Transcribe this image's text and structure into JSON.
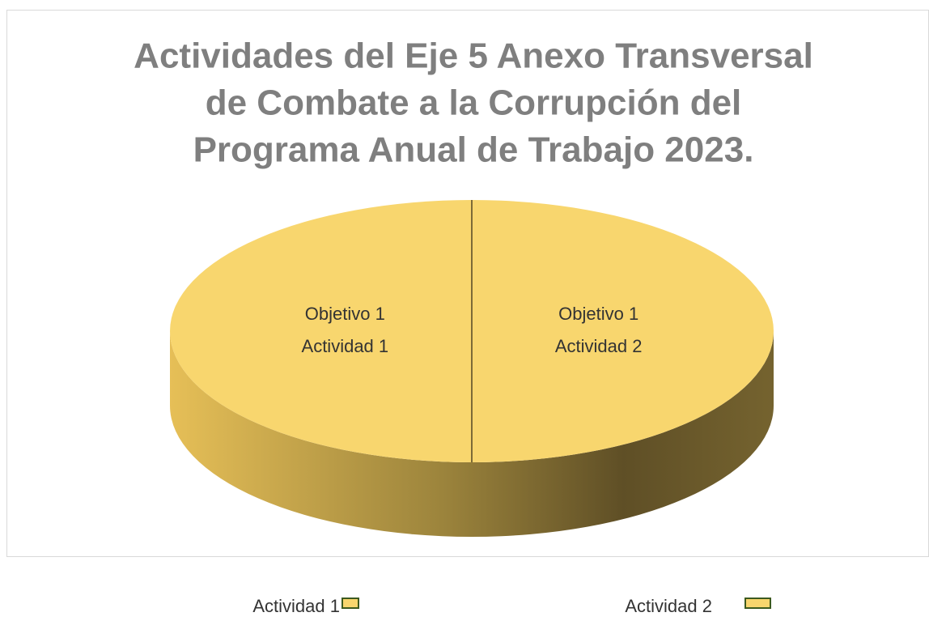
{
  "chart_data": {
    "type": "pie",
    "title": [
      "Actividades del Eje 5 Anexo Transversal",
      "de Combate a la Corrupción del",
      "Programa Anual de Trabajo 2023."
    ],
    "categories": [
      "Actividad 1",
      "Actividad 2"
    ],
    "values": [
      50,
      50
    ],
    "labels": [
      [
        "Objetivo 1",
        "Actividad 1"
      ],
      [
        "Objetivo 1",
        "Actividad 2"
      ]
    ],
    "color": "#f8d66e",
    "legend": "bottom"
  }
}
